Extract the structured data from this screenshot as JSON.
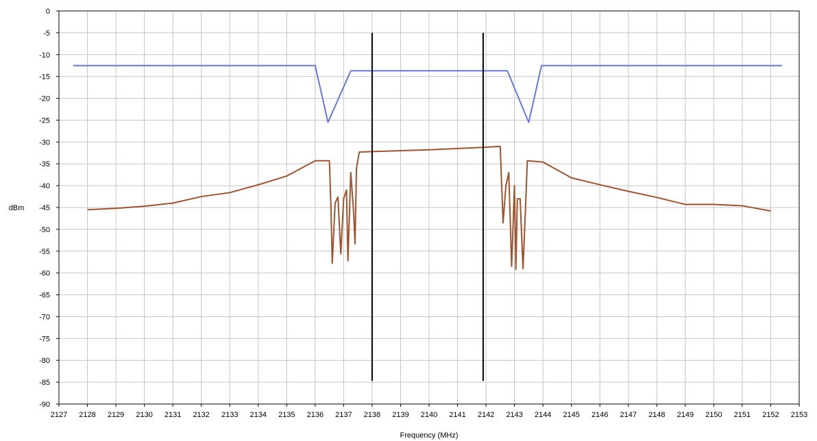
{
  "chart_data": {
    "type": "line",
    "title": "",
    "xlabel": "Frequency (MHz)",
    "ylabel": "dBm",
    "xlim": [
      2127,
      2153
    ],
    "ylim": [
      -90,
      0
    ],
    "grid": true,
    "legend": "none",
    "x_ticks": [
      "2127",
      "2128",
      "2129",
      "2130",
      "2131",
      "2132",
      "2133",
      "2134",
      "2135",
      "2136",
      "2137",
      "2138",
      "2139",
      "2140",
      "2141",
      "2142",
      "2143",
      "2144",
      "2145",
      "2146",
      "2147",
      "2148",
      "2149",
      "2150",
      "2151",
      "2152",
      "2153"
    ],
    "y_ticks": [
      "0",
      "-5",
      "-10",
      "-15",
      "-20",
      "-25",
      "-30",
      "-35",
      "-40",
      "-45",
      "-50",
      "-55",
      "-60",
      "-65",
      "-70",
      "-75",
      "-80",
      "-85",
      "-90"
    ],
    "series": [
      {
        "color": "#6677dd",
        "points": [
          [
            2127.5,
            -12.5
          ],
          [
            2136.0,
            -12.5
          ],
          [
            2136.45,
            -25.5
          ],
          [
            2137.25,
            -13.7
          ],
          [
            2142.75,
            -13.7
          ],
          [
            2143.5,
            -25.5
          ],
          [
            2143.95,
            -12.5
          ],
          [
            2152.4,
            -12.5
          ]
        ]
      },
      {
        "color": "#a0522d",
        "points": [
          [
            2128.0,
            -45.5
          ],
          [
            2129.0,
            -45.2
          ],
          [
            2130.0,
            -44.7
          ],
          [
            2131.0,
            -44.0
          ],
          [
            2132.0,
            -42.5
          ],
          [
            2133.0,
            -41.6
          ],
          [
            2134.0,
            -39.8
          ],
          [
            2135.0,
            -37.8
          ],
          [
            2136.0,
            -34.3
          ],
          [
            2136.5,
            -34.3
          ],
          [
            2136.55,
            -44.2
          ],
          [
            2136.6,
            -57.8
          ],
          [
            2136.7,
            -44.0
          ],
          [
            2136.8,
            -42.6
          ],
          [
            2136.9,
            -55.6
          ],
          [
            2137.0,
            -43.0
          ],
          [
            2137.1,
            -41.0
          ],
          [
            2137.15,
            -57.2
          ],
          [
            2137.25,
            -37.0
          ],
          [
            2137.35,
            -46.0
          ],
          [
            2137.4,
            -53.3
          ],
          [
            2137.45,
            -36.0
          ],
          [
            2137.55,
            -32.3
          ],
          [
            2138.0,
            -32.2
          ],
          [
            2140.0,
            -31.8
          ],
          [
            2142.0,
            -31.2
          ],
          [
            2142.5,
            -31.0
          ],
          [
            2142.6,
            -48.5
          ],
          [
            2142.7,
            -40.0
          ],
          [
            2142.8,
            -37.0
          ],
          [
            2142.9,
            -58.5
          ],
          [
            2143.0,
            -40.0
          ],
          [
            2143.05,
            -59.2
          ],
          [
            2143.1,
            -43.0
          ],
          [
            2143.2,
            -43.0
          ],
          [
            2143.3,
            -59.0
          ],
          [
            2143.4,
            -43.2
          ],
          [
            2143.45,
            -34.3
          ],
          [
            2144.0,
            -34.6
          ],
          [
            2145.0,
            -38.2
          ],
          [
            2146.0,
            -39.8
          ],
          [
            2147.0,
            -41.3
          ],
          [
            2148.0,
            -42.7
          ],
          [
            2149.0,
            -44.3
          ],
          [
            2150.0,
            -44.3
          ],
          [
            2151.0,
            -44.6
          ],
          [
            2152.0,
            -45.8
          ]
        ]
      },
      {
        "color": "#000000",
        "points": [
          [
            2138.0,
            -5
          ],
          [
            2138.0,
            -84.7
          ]
        ]
      },
      {
        "color": "#000000",
        "points": [
          [
            2141.9,
            -5
          ],
          [
            2141.9,
            -84.7
          ]
        ]
      }
    ]
  }
}
